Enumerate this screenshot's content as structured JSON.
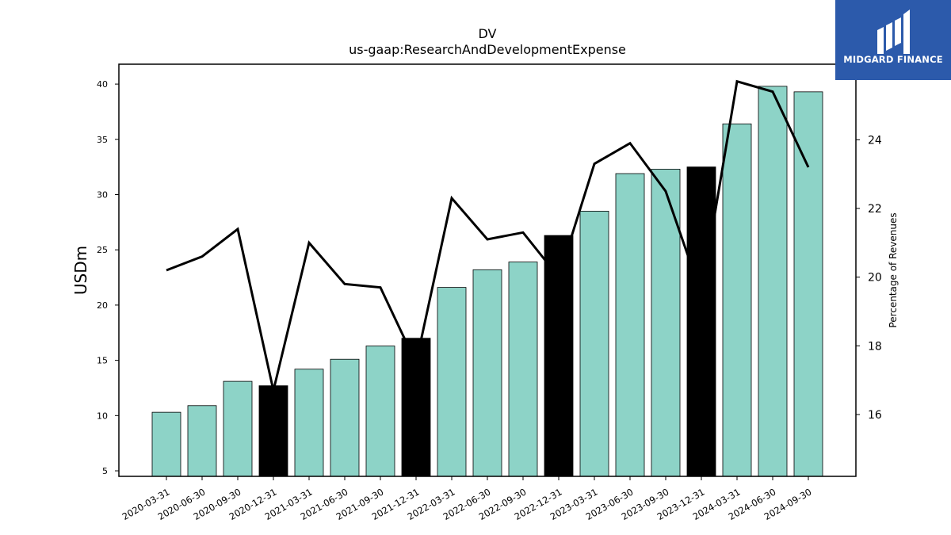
{
  "logo": {
    "text": "MIDGARD FINANCE"
  },
  "chart_data": {
    "type": "bar",
    "title": "DV",
    "subtitle": "us-gaap:ResearchAndDevelopmentExpense",
    "ylabel": "USDm",
    "y2label": "Percentage of Revenues",
    "ylim": [
      4.5,
      41.8
    ],
    "y2lim": [
      14.2,
      26.2
    ],
    "yticks": [
      5,
      10,
      15,
      20,
      25,
      30,
      35,
      40
    ],
    "y2ticks": [
      16,
      18,
      20,
      22,
      24
    ],
    "categories": [
      "2020-03-31",
      "2020-06-30",
      "2020-09-30",
      "2020-12-31",
      "2021-03-31",
      "2021-06-30",
      "2021-09-30",
      "2021-12-31",
      "2022-03-31",
      "2022-06-30",
      "2022-09-30",
      "2022-12-31",
      "2023-03-31",
      "2023-06-30",
      "2023-09-30",
      "2023-12-31",
      "2024-03-31",
      "2024-06-30",
      "2024-09-30"
    ],
    "series": [
      {
        "type": "bar",
        "axis": "left",
        "values": [
          10.3,
          10.9,
          13.1,
          12.7,
          14.2,
          15.1,
          16.3,
          17.0,
          21.6,
          23.2,
          23.9,
          26.3,
          28.5,
          31.9,
          32.3,
          32.5,
          36.4,
          39.8,
          39.3
        ],
        "colors": [
          "#8dd3c7",
          "#8dd3c7",
          "#8dd3c7",
          "#000000",
          "#8dd3c7",
          "#8dd3c7",
          "#8dd3c7",
          "#000000",
          "#8dd3c7",
          "#8dd3c7",
          "#8dd3c7",
          "#000000",
          "#8dd3c7",
          "#8dd3c7",
          "#8dd3c7",
          "#000000",
          "#8dd3c7",
          "#8dd3c7",
          "#8dd3c7"
        ]
      },
      {
        "type": "line",
        "axis": "right",
        "color": "#000000",
        "values": [
          20.2,
          20.6,
          21.4,
          16.7,
          21.0,
          19.8,
          19.7,
          17.5,
          22.3,
          21.1,
          21.3,
          20.0,
          23.3,
          23.9,
          22.5,
          19.5,
          25.7,
          25.4,
          23.2
        ]
      }
    ]
  }
}
